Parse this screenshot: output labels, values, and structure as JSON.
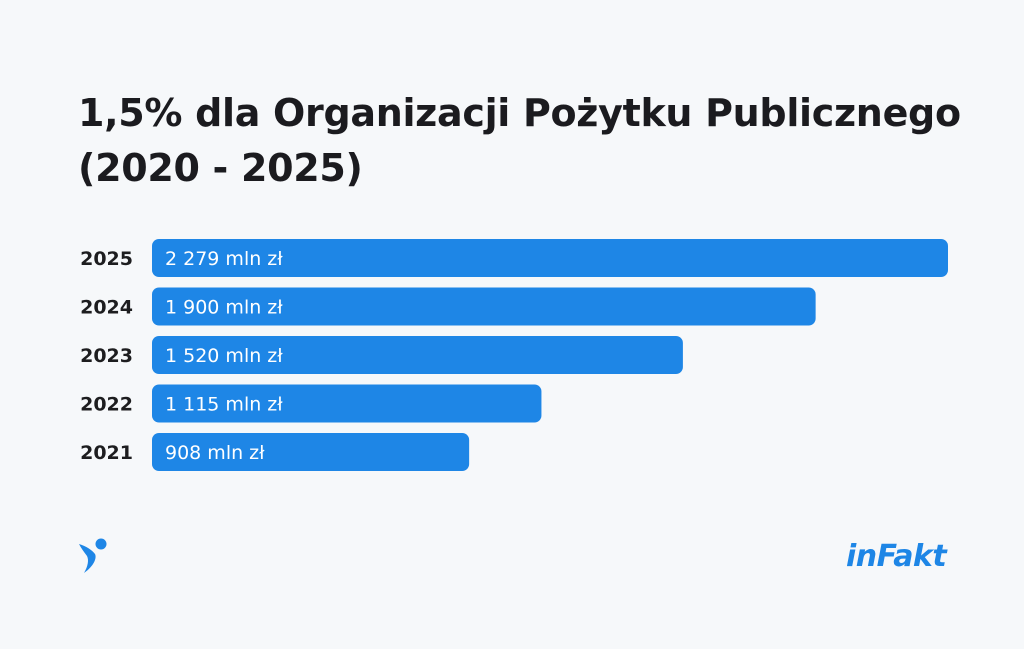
{
  "title": "1,5% dla Organizacji Pożytku Publicznego (2020 - 2025)",
  "brand": {
    "logo_text": "inFakt",
    "color": "#1e86e6"
  },
  "colors": {
    "bar": "#1e86e6",
    "background": "#f6f8fa",
    "label_text": "#ffffff"
  },
  "chart_data": {
    "type": "bar",
    "orientation": "horizontal",
    "categories": [
      "2025",
      "2024",
      "2023",
      "2022",
      "2021"
    ],
    "values": [
      2279,
      1900,
      1520,
      1115,
      908
    ],
    "value_labels": [
      "2 279 mln zł",
      "1 900 mln zł",
      "1 520 mln zł",
      "1 115 mln zł",
      "908 mln zł"
    ],
    "title": "1,5% dla Organizacji Pożytku Publicznego (2020 - 2025)",
    "xlabel": "",
    "ylabel": "",
    "xlim": [
      0,
      2279
    ],
    "grid": false,
    "legend": "none"
  }
}
